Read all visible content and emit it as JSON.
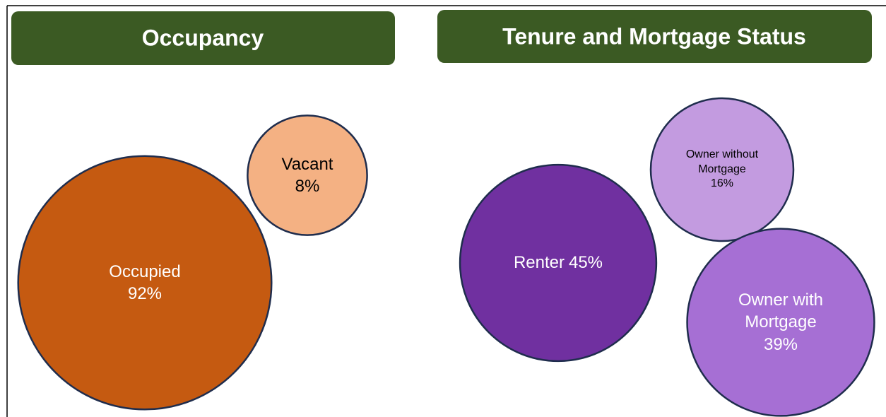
{
  "chart_data": [
    {
      "type": "bubble",
      "title": "Occupancy",
      "categories": [
        "Occupied",
        "Vacant"
      ],
      "values": [
        92,
        8
      ],
      "value_labels": [
        "92%",
        "8%"
      ],
      "colors": [
        "#c55a11",
        "#f4b183"
      ]
    },
    {
      "type": "bubble",
      "title": "Tenure and Mortgage Status",
      "categories": [
        "Renter",
        "Owner without Mortgage",
        "Owner with Mortgage"
      ],
      "values": [
        45,
        16,
        39
      ],
      "value_labels": [
        "45%",
        "16%",
        "39%"
      ],
      "colors": [
        "#7030a0",
        "#c39be0",
        "#a66fd4"
      ]
    }
  ]
}
